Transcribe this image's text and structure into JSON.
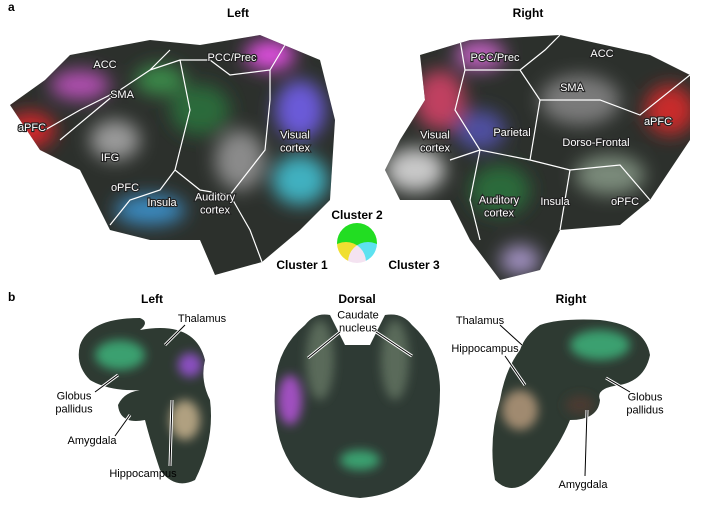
{
  "panel_a": {
    "letter": "a",
    "left": {
      "title": "Left",
      "labels": [
        {
          "lines": [
            "ACC"
          ]
        },
        {
          "lines": [
            "PCC/Prec"
          ]
        },
        {
          "lines": [
            "SMA"
          ]
        },
        {
          "lines": [
            "aPFC"
          ]
        },
        {
          "lines": [
            "IFG"
          ]
        },
        {
          "lines": [
            "oPFC"
          ]
        },
        {
          "lines": [
            "Insula"
          ]
        },
        {
          "lines": [
            "Auditory",
            "cortex"
          ]
        },
        {
          "lines": [
            "Visual",
            "cortex"
          ]
        }
      ]
    },
    "right": {
      "title": "Right",
      "labels": [
        {
          "lines": [
            "PCC/Prec"
          ]
        },
        {
          "lines": [
            "ACC"
          ]
        },
        {
          "lines": [
            "SMA"
          ]
        },
        {
          "lines": [
            "aPFC"
          ]
        },
        {
          "lines": [
            "Visual",
            "cortex"
          ]
        },
        {
          "lines": [
            "Parietal"
          ]
        },
        {
          "lines": [
            "Dorso-Frontal"
          ]
        },
        {
          "lines": [
            "Auditory",
            "cortex"
          ]
        },
        {
          "lines": [
            "Insula"
          ]
        },
        {
          "lines": [
            "oPFC"
          ]
        }
      ]
    },
    "legend": {
      "top": "Cluster 2",
      "left": "Cluster 1",
      "right": "Cluster 3"
    }
  },
  "panel_b": {
    "letter": "b",
    "left": {
      "title": "Left",
      "labels": [
        {
          "lines": [
            "Thalamus"
          ]
        },
        {
          "lines": [
            "Globus",
            "pallidus"
          ]
        },
        {
          "lines": [
            "Amygdala"
          ]
        },
        {
          "lines": [
            "Hippocampus"
          ]
        }
      ]
    },
    "dorsal": {
      "title": "Dorsal",
      "labels": [
        {
          "lines": [
            "Caudate",
            "nucleus"
          ]
        }
      ]
    },
    "right": {
      "title": "Right",
      "labels": [
        {
          "lines": [
            "Thalamus"
          ]
        },
        {
          "lines": [
            "Hippocampus"
          ]
        },
        {
          "lines": [
            "Globus",
            "pallidus"
          ]
        },
        {
          "lines": [
            "Amygdala"
          ]
        }
      ]
    }
  }
}
